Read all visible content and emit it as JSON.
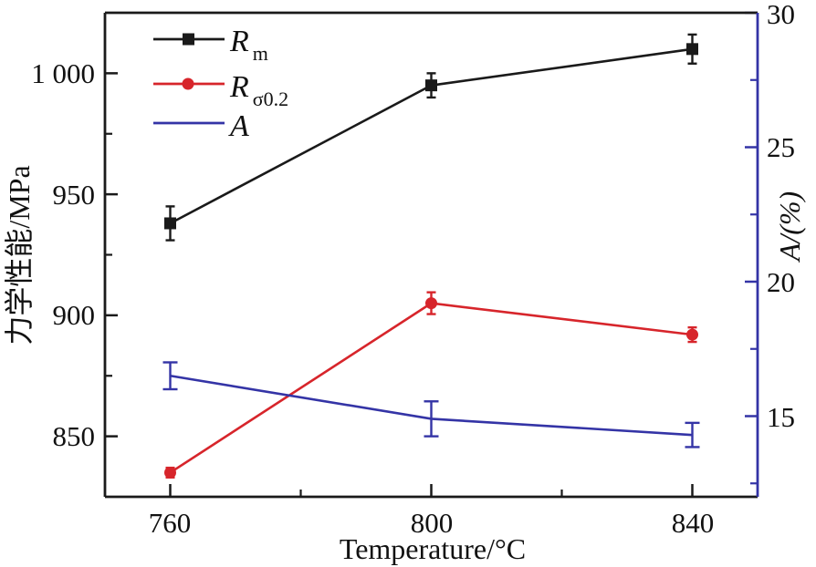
{
  "figure": {
    "description_colors": {
      "series_black": "#1a1a1a",
      "series_red": "#d7252b",
      "series_blue": "#3434a6",
      "background": "#ffffff"
    }
  },
  "chart_data": {
    "type": "line",
    "title": "",
    "grid": false,
    "legend_position": "top-left-inside",
    "x": [
      760,
      800,
      840
    ],
    "x_axis": {
      "label": "Temperature/°C",
      "ticks": [
        "760",
        "800",
        "840"
      ],
      "minor_ticks": [
        780,
        820
      ],
      "range": [
        750,
        850
      ]
    },
    "left_axis": {
      "label": "力学性能/MPa",
      "ticks": [
        850,
        900,
        950,
        1000
      ],
      "tick_labels": [
        "850",
        "900",
        "950",
        "1 000"
      ],
      "minor_ticks": [
        875,
        925,
        975
      ],
      "range": [
        825,
        1025
      ]
    },
    "right_axis": {
      "label": "A/(%)",
      "ticks": [
        15,
        20,
        25,
        30
      ],
      "tick_labels": [
        "15",
        "20",
        "25",
        "30"
      ],
      "minor_ticks": [
        12.5,
        17.5,
        22.5,
        27.5
      ],
      "range": [
        12,
        30
      ]
    },
    "axis_colors": {
      "left": "#1a1a1a",
      "bottom": "#1a1a1a",
      "top": "#1a1a1a",
      "right": "#3434a6"
    },
    "series": [
      {
        "name": "Rm",
        "legend_main": "R",
        "legend_sub": "m",
        "axis": "left",
        "color": "#1a1a1a",
        "marker": "square",
        "values": [
          938,
          995,
          1010
        ],
        "errors": [
          7,
          5,
          6
        ]
      },
      {
        "name": "Rsigma02",
        "legend_main": "R",
        "legend_sub": "σ0.2",
        "axis": "left",
        "color": "#d7252b",
        "marker": "circle",
        "values": [
          835,
          905,
          892
        ],
        "errors": [
          2,
          4.5,
          3
        ]
      },
      {
        "name": "A",
        "legend_main": "A",
        "legend_sub": "",
        "axis": "right",
        "color": "#3434a6",
        "marker": "none",
        "values": [
          16.5,
          14.9,
          14.3
        ],
        "errors": [
          0.5,
          0.65,
          0.45
        ]
      }
    ]
  }
}
